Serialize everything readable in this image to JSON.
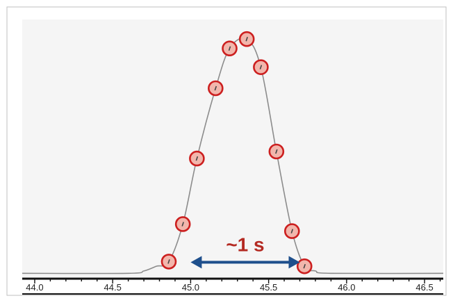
{
  "chart_data": {
    "type": "line",
    "title": "",
    "xlabel": "",
    "ylabel": "",
    "xlim": [
      43.92,
      46.62
    ],
    "ylim": [
      -0.02,
      1.06
    ],
    "x_ticks": [
      "44.0",
      "44.5",
      "45.0",
      "45.5",
      "46.0",
      "46.5"
    ],
    "x_tick_values": [
      44.0,
      44.5,
      45.0,
      45.5,
      46.0,
      46.5
    ],
    "annotation": "~1 s",
    "span": [
      45.0,
      45.7
    ],
    "series": [
      {
        "curve": [
          [
            43.92,
            0.0
          ],
          [
            44.6,
            0.0
          ],
          [
            44.7,
            0.01
          ],
          [
            44.78,
            0.03
          ],
          [
            44.86,
            0.05
          ],
          [
            44.95,
            0.21
          ],
          [
            45.04,
            0.49
          ],
          [
            45.16,
            0.79
          ],
          [
            45.25,
            0.96
          ],
          [
            45.36,
            1.0
          ],
          [
            45.45,
            0.88
          ],
          [
            45.55,
            0.52
          ],
          [
            45.65,
            0.18
          ],
          [
            45.73,
            0.03
          ],
          [
            45.8,
            0.01
          ],
          [
            45.9,
            0.0
          ],
          [
            46.62,
            0.0
          ]
        ],
        "points": [
          [
            44.86,
            0.05
          ],
          [
            44.95,
            0.21
          ],
          [
            45.04,
            0.49
          ],
          [
            45.16,
            0.79
          ],
          [
            45.25,
            0.96
          ],
          [
            45.36,
            1.0
          ],
          [
            45.45,
            0.88
          ],
          [
            45.55,
            0.52
          ],
          [
            45.65,
            0.18
          ],
          [
            45.73,
            0.03
          ]
        ]
      }
    ],
    "colors": {
      "plot_bg": "#f5f5f5",
      "line": "#8c8c8c",
      "marker_fill": "#f2b6ac",
      "marker_stroke": "#cc1f1f",
      "arrow": "#1e4f8c",
      "label": "#b42a22"
    }
  }
}
